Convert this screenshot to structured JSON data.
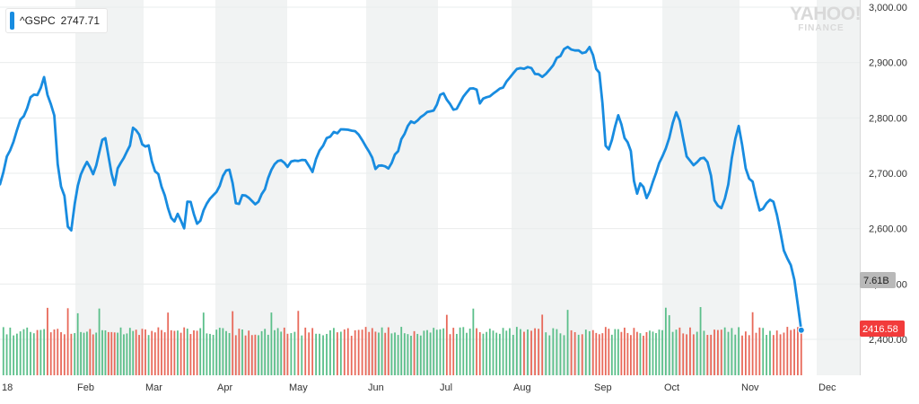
{
  "legend": {
    "symbol": "^GSPC",
    "value": "2747.71"
  },
  "logo": {
    "main": "YAHOO!",
    "sub": "FINANCE"
  },
  "badges": {
    "volume": "7.61B",
    "price": "2416.58"
  },
  "colors": {
    "line": "#188ce0",
    "vol_up": "#5bbf8a",
    "vol_down": "#e8695a",
    "band": "#f1f3f3",
    "price_badge": "#f23b3b",
    "volume_badge": "#b9b9b9"
  },
  "chart_data": {
    "type": "line",
    "title": "",
    "series": [
      {
        "name": "^GSPC",
        "last": 2416.58
      }
    ],
    "ylim": [
      2350,
      3000
    ],
    "y_ticks": [
      "3,000.00",
      "2,900.00",
      "2,800.00",
      "2,700.00",
      "2,600.00",
      "2,500.00",
      "2,400.00"
    ],
    "x_ticks": [
      "18",
      "Feb",
      "Mar",
      "Apr",
      "May",
      "Jun",
      "Jul",
      "Aug",
      "Sep",
      "Oct",
      "Nov",
      "Dec"
    ],
    "grid": true,
    "legend_position": "top-left",
    "anchors": [
      {
        "m": 0.0,
        "y": 2680
      },
      {
        "m": 0.08,
        "y": 2725
      },
      {
        "m": 0.17,
        "y": 2750
      },
      {
        "m": 0.25,
        "y": 2790
      },
      {
        "m": 0.33,
        "y": 2802
      },
      {
        "m": 0.42,
        "y": 2840
      },
      {
        "m": 0.5,
        "y": 2840
      },
      {
        "m": 0.58,
        "y": 2873
      },
      {
        "m": 0.67,
        "y": 2822
      },
      {
        "m": 0.71,
        "y": 2822
      },
      {
        "m": 0.75,
        "y": 2762
      },
      {
        "m": 0.79,
        "y": 2650
      },
      {
        "m": 0.83,
        "y": 2695
      },
      {
        "m": 0.92,
        "y": 2575
      },
      {
        "m": 1.0,
        "y": 2655
      },
      {
        "m": 1.08,
        "y": 2700
      },
      {
        "m": 1.17,
        "y": 2720
      },
      {
        "m": 1.27,
        "y": 2700
      },
      {
        "m": 1.34,
        "y": 2735
      },
      {
        "m": 1.43,
        "y": 2775
      },
      {
        "m": 1.5,
        "y": 2720
      },
      {
        "m": 1.56,
        "y": 2675
      },
      {
        "m": 1.65,
        "y": 2720
      },
      {
        "m": 1.78,
        "y": 2740
      },
      {
        "m": 1.85,
        "y": 2785
      },
      {
        "m": 1.92,
        "y": 2775
      },
      {
        "m": 2.0,
        "y": 2745
      },
      {
        "m": 2.08,
        "y": 2750
      },
      {
        "m": 2.13,
        "y": 2710
      },
      {
        "m": 2.2,
        "y": 2700
      },
      {
        "m": 2.32,
        "y": 2650
      },
      {
        "m": 2.42,
        "y": 2605
      },
      {
        "m": 2.5,
        "y": 2640
      },
      {
        "m": 2.55,
        "y": 2585
      },
      {
        "m": 2.62,
        "y": 2660
      },
      {
        "m": 2.75,
        "y": 2605
      },
      {
        "m": 2.9,
        "y": 2650
      },
      {
        "m": 3.0,
        "y": 2660
      },
      {
        "m": 3.12,
        "y": 2700
      },
      {
        "m": 3.2,
        "y": 2705
      },
      {
        "m": 3.3,
        "y": 2640
      },
      {
        "m": 3.4,
        "y": 2665
      },
      {
        "m": 3.55,
        "y": 2640
      },
      {
        "m": 3.7,
        "y": 2670
      },
      {
        "m": 3.8,
        "y": 2720
      },
      {
        "m": 3.92,
        "y": 2720
      },
      {
        "m": 4.0,
        "y": 2715
      },
      {
        "m": 4.12,
        "y": 2725
      },
      {
        "m": 4.23,
        "y": 2720
      },
      {
        "m": 4.32,
        "y": 2705
      },
      {
        "m": 4.42,
        "y": 2745
      },
      {
        "m": 4.55,
        "y": 2770
      },
      {
        "m": 4.7,
        "y": 2780
      },
      {
        "m": 4.8,
        "y": 2780
      },
      {
        "m": 4.92,
        "y": 2768
      },
      {
        "m": 5.05,
        "y": 2740
      },
      {
        "m": 5.12,
        "y": 2710
      },
      {
        "m": 5.2,
        "y": 2715
      },
      {
        "m": 5.32,
        "y": 2710
      },
      {
        "m": 5.45,
        "y": 2745
      },
      {
        "m": 5.55,
        "y": 2780
      },
      {
        "m": 5.62,
        "y": 2795
      },
      {
        "m": 5.7,
        "y": 2790
      },
      {
        "m": 5.82,
        "y": 2808
      },
      {
        "m": 5.92,
        "y": 2808
      },
      {
        "m": 6.05,
        "y": 2845
      },
      {
        "m": 6.15,
        "y": 2830
      },
      {
        "m": 6.22,
        "y": 2815
      },
      {
        "m": 6.32,
        "y": 2830
      },
      {
        "m": 6.4,
        "y": 2850
      },
      {
        "m": 6.5,
        "y": 2858
      },
      {
        "m": 6.57,
        "y": 2830
      },
      {
        "m": 6.62,
        "y": 2835
      },
      {
        "m": 6.7,
        "y": 2840
      },
      {
        "m": 6.8,
        "y": 2850
      },
      {
        "m": 6.92,
        "y": 2862
      },
      {
        "m": 7.0,
        "y": 2880
      },
      {
        "m": 7.1,
        "y": 2890
      },
      {
        "m": 7.2,
        "y": 2895
      },
      {
        "m": 7.3,
        "y": 2880
      },
      {
        "m": 7.38,
        "y": 2875
      },
      {
        "m": 7.47,
        "y": 2890
      },
      {
        "m": 7.55,
        "y": 2905
      },
      {
        "m": 7.62,
        "y": 2915
      },
      {
        "m": 7.68,
        "y": 2930
      },
      {
        "m": 7.78,
        "y": 2922
      },
      {
        "m": 7.88,
        "y": 2918
      },
      {
        "m": 7.95,
        "y": 2925
      },
      {
        "m": 8.0,
        "y": 2924
      },
      {
        "m": 8.04,
        "y": 2887
      },
      {
        "m": 8.12,
        "y": 2880
      },
      {
        "m": 8.18,
        "y": 2760
      },
      {
        "m": 8.22,
        "y": 2735
      },
      {
        "m": 8.3,
        "y": 2770
      },
      {
        "m": 8.38,
        "y": 2810
      },
      {
        "m": 8.45,
        "y": 2768
      },
      {
        "m": 8.55,
        "y": 2740
      },
      {
        "m": 8.62,
        "y": 2655
      },
      {
        "m": 8.7,
        "y": 2685
      },
      {
        "m": 8.78,
        "y": 2650
      },
      {
        "m": 8.9,
        "y": 2700
      },
      {
        "m": 9.0,
        "y": 2730
      },
      {
        "m": 9.08,
        "y": 2755
      },
      {
        "m": 9.16,
        "y": 2810
      },
      {
        "m": 9.22,
        "y": 2800
      },
      {
        "m": 9.32,
        "y": 2725
      },
      {
        "m": 9.42,
        "y": 2710
      },
      {
        "m": 9.52,
        "y": 2735
      },
      {
        "m": 9.6,
        "y": 2720
      },
      {
        "m": 9.68,
        "y": 2650
      },
      {
        "m": 9.78,
        "y": 2635
      },
      {
        "m": 9.86,
        "y": 2685
      },
      {
        "m": 9.92,
        "y": 2745
      },
      {
        "m": 10.0,
        "y": 2790
      },
      {
        "m": 10.05,
        "y": 2738
      },
      {
        "m": 10.1,
        "y": 2695
      },
      {
        "m": 10.18,
        "y": 2680
      },
      {
        "m": 10.25,
        "y": 2635
      },
      {
        "m": 10.32,
        "y": 2640
      },
      {
        "m": 10.4,
        "y": 2650
      },
      {
        "m": 10.45,
        "y": 2650
      },
      {
        "m": 10.52,
        "y": 2600
      },
      {
        "m": 10.6,
        "y": 2548
      },
      {
        "m": 10.65,
        "y": 2545
      },
      {
        "m": 10.72,
        "y": 2500
      },
      {
        "m": 10.8,
        "y": 2416.58
      }
    ]
  }
}
